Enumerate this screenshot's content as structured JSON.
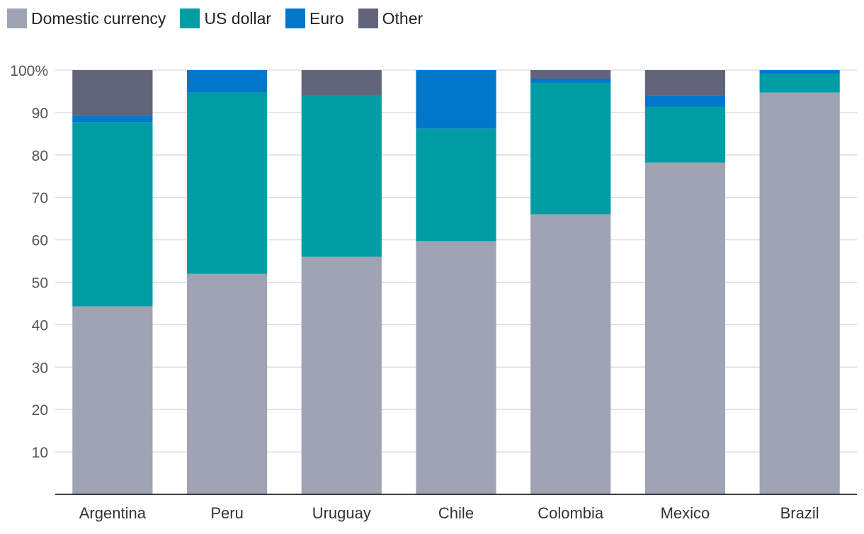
{
  "chart_data": {
    "type": "bar",
    "stacked": true,
    "categories": [
      "Argentina",
      "Peru",
      "Uruguay",
      "Chile",
      "Colombia",
      "Mexico",
      "Brazil"
    ],
    "series": [
      {
        "name": "Domestic currency",
        "color": "#a0a3b3",
        "values": [
          44.3,
          52.0,
          56.0,
          59.7,
          66.0,
          78.2,
          94.7
        ]
      },
      {
        "name": "US dollar",
        "color": "#009da5",
        "values": [
          43.5,
          42.7,
          38.0,
          26.5,
          31.0,
          13.2,
          4.4
        ]
      },
      {
        "name": "Euro",
        "color": "#0077c8",
        "values": [
          1.5,
          5.3,
          0.0,
          13.8,
          1.0,
          2.7,
          0.9
        ]
      },
      {
        "name": "Other",
        "color": "#62647a",
        "values": [
          10.7,
          0.0,
          6.0,
          0.0,
          2.0,
          5.9,
          0.0
        ]
      }
    ],
    "ylim": [
      0,
      100
    ],
    "yticks": [
      {
        "value": 10,
        "label": "10"
      },
      {
        "value": 20,
        "label": "20"
      },
      {
        "value": 30,
        "label": "30"
      },
      {
        "value": 40,
        "label": "40"
      },
      {
        "value": 50,
        "label": "50"
      },
      {
        "value": 60,
        "label": "60"
      },
      {
        "value": 70,
        "label": "70"
      },
      {
        "value": 80,
        "label": "80"
      },
      {
        "value": 90,
        "label": "90"
      },
      {
        "value": 100,
        "label": "100%"
      }
    ],
    "grid": true,
    "legend_position": "top-left"
  }
}
